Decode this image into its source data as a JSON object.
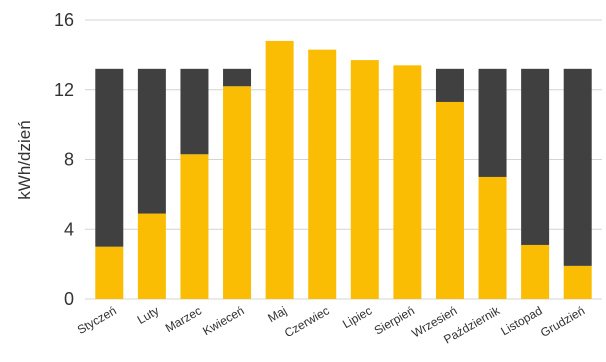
{
  "chart_data": {
    "type": "bar",
    "stacked": true,
    "title": "",
    "xlabel": "",
    "ylabel": "kWh/dzień",
    "ylim": [
      0,
      16
    ],
    "yticks": [
      0,
      4,
      8,
      12,
      16
    ],
    "grid": true,
    "categories": [
      "Styczeń",
      "Luty",
      "Marzec",
      "Kwieceń",
      "Maj",
      "Czerwiec",
      "Lipiec",
      "Sierpień",
      "Wrzesień",
      "Październik",
      "Listopad",
      "Grudzień"
    ],
    "series": [
      {
        "values": [
          3.0,
          4.9,
          8.3,
          12.2,
          14.8,
          14.3,
          13.7,
          13.4,
          11.3,
          7.0,
          3.1,
          1.9
        ],
        "color": "#fbbc04"
      },
      {
        "values": [
          10.2,
          8.3,
          4.9,
          1.0,
          0,
          0,
          0,
          0,
          1.9,
          6.2,
          10.1,
          11.3
        ],
        "color": "#404040"
      }
    ]
  }
}
